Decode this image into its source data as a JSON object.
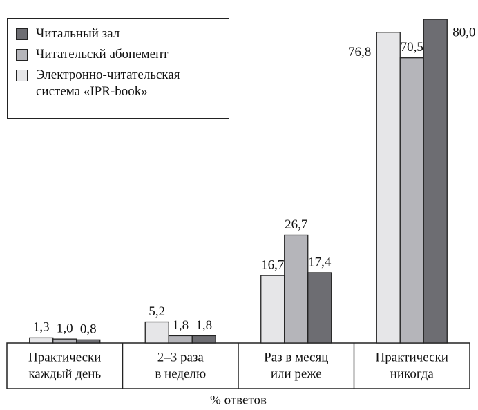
{
  "chart_data": {
    "type": "bar",
    "categories": [
      [
        "Практически",
        "каждый день"
      ],
      [
        "2–3 раза",
        "в неделю"
      ],
      [
        "Раз в месяц",
        "или реже"
      ],
      [
        "Практически",
        "никогда"
      ]
    ],
    "series": [
      {
        "name": "Электронно-читательская система «IPR-book»",
        "color": "#e6e6e8",
        "values": [
          1.3,
          5.2,
          16.7,
          76.8
        ],
        "value_labels": [
          "1,3",
          "5,2",
          "16,7",
          "76,8"
        ]
      },
      {
        "name": "Читательскй абонемент",
        "color": "#b5b5ba",
        "values": [
          1.0,
          1.8,
          26.7,
          70.5
        ],
        "value_labels": [
          "1,0",
          "1,8",
          "26,7",
          "70,5"
        ]
      },
      {
        "name": "Читальный зал",
        "color": "#6d6d72",
        "values": [
          0.8,
          1.8,
          17.4,
          80.0
        ],
        "value_labels": [
          "0,8",
          "1,8",
          "17,4",
          "80,0"
        ]
      }
    ],
    "legend_order": [
      2,
      1,
      0
    ],
    "xlabel": "% ответов",
    "ylim": [
      0,
      80
    ]
  }
}
